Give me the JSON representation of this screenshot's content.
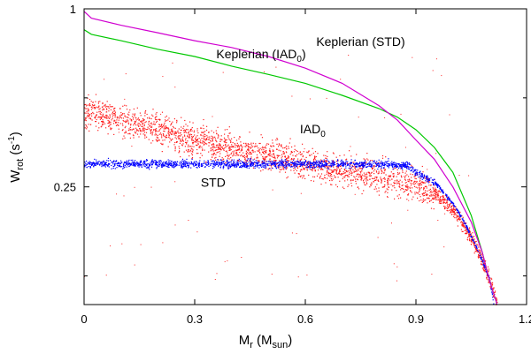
{
  "chart_data": {
    "type": "scatter",
    "title": "",
    "xlabel": {
      "main": "M",
      "sub": "r",
      "rest": " (M",
      "sub2": "sun",
      "close": ")"
    },
    "ylabel": {
      "main": "W",
      "sub": "rot",
      "rest": " (s",
      "sup": "-1",
      "close": ")"
    },
    "xlim": [
      0,
      1.2
    ],
    "ylim": [
      0.1,
      1.0
    ],
    "yscale": "log",
    "xticks": [
      {
        "value": 0,
        "label": "0"
      },
      {
        "value": 0.3,
        "label": "0.3"
      },
      {
        "value": 0.6,
        "label": "0.6"
      },
      {
        "value": 0.9,
        "label": "0.9"
      },
      {
        "value": 1.2,
        "label": "1.2"
      }
    ],
    "yticks": [
      {
        "value": 1.0,
        "label": "1"
      },
      {
        "value": 0.25,
        "label": "0.25"
      }
    ],
    "yminor_ticks": [
      0.5,
      0.125
    ],
    "series": [
      {
        "name": "Keplerian (STD)",
        "kind": "line",
        "color": "#d000d0",
        "x": [
          0,
          0.02,
          0.1,
          0.2,
          0.3,
          0.4,
          0.5,
          0.6,
          0.7,
          0.8,
          0.85,
          0.9,
          0.95,
          1.0,
          1.05,
          1.08,
          1.1,
          1.12
        ],
        "y": [
          0.98,
          0.93,
          0.88,
          0.83,
          0.78,
          0.74,
          0.69,
          0.63,
          0.56,
          0.47,
          0.42,
          0.36,
          0.31,
          0.25,
          0.19,
          0.15,
          0.12,
          0.1
        ]
      },
      {
        "name": "Keplerian (IAD0)",
        "kind": "line",
        "color": "#00c800",
        "x": [
          0,
          0.02,
          0.1,
          0.2,
          0.3,
          0.4,
          0.5,
          0.6,
          0.7,
          0.8,
          0.85,
          0.9,
          0.95,
          1.0,
          1.05,
          1.08,
          1.1,
          1.12
        ],
        "y": [
          0.85,
          0.82,
          0.78,
          0.73,
          0.69,
          0.64,
          0.6,
          0.56,
          0.51,
          0.46,
          0.43,
          0.39,
          0.34,
          0.28,
          0.2,
          0.15,
          0.12,
          0.1
        ]
      },
      {
        "name": "IAD0",
        "kind": "scatter",
        "color": "#ff2020",
        "x": [
          0,
          0.05,
          0.1,
          0.2,
          0.3,
          0.4,
          0.5,
          0.6,
          0.7,
          0.8,
          0.85,
          0.9,
          0.95,
          1.0,
          1.03,
          1.06,
          1.08,
          1.1,
          1.12
        ],
        "y": [
          0.45,
          0.44,
          0.42,
          0.39,
          0.36,
          0.34,
          0.32,
          0.3,
          0.285,
          0.27,
          0.265,
          0.255,
          0.24,
          0.21,
          0.185,
          0.16,
          0.14,
          0.12,
          0.1
        ]
      },
      {
        "name": "STD",
        "kind": "scatter",
        "color": "#0000ff",
        "x": [
          0,
          0.1,
          0.2,
          0.3,
          0.4,
          0.5,
          0.6,
          0.7,
          0.8,
          0.85,
          0.88,
          0.9,
          0.95,
          1.0,
          1.03,
          1.06,
          1.08,
          1.1,
          1.11
        ],
        "y": [
          0.3,
          0.3,
          0.3,
          0.3,
          0.3,
          0.3,
          0.3,
          0.3,
          0.299,
          0.298,
          0.295,
          0.28,
          0.26,
          0.22,
          0.19,
          0.16,
          0.14,
          0.12,
          0.1
        ]
      }
    ],
    "annotations": [
      {
        "text": "Keplerian (STD)",
        "x": 0.75,
        "y": 0.75
      },
      {
        "text": "Keplerian (IAD",
        "sub": "0",
        "close": ")",
        "x": 0.48,
        "y": 0.68
      },
      {
        "text": "IAD",
        "sub": "0",
        "x": 0.62,
        "y": 0.38
      },
      {
        "text": "STD",
        "x": 0.35,
        "y": 0.25
      }
    ]
  }
}
